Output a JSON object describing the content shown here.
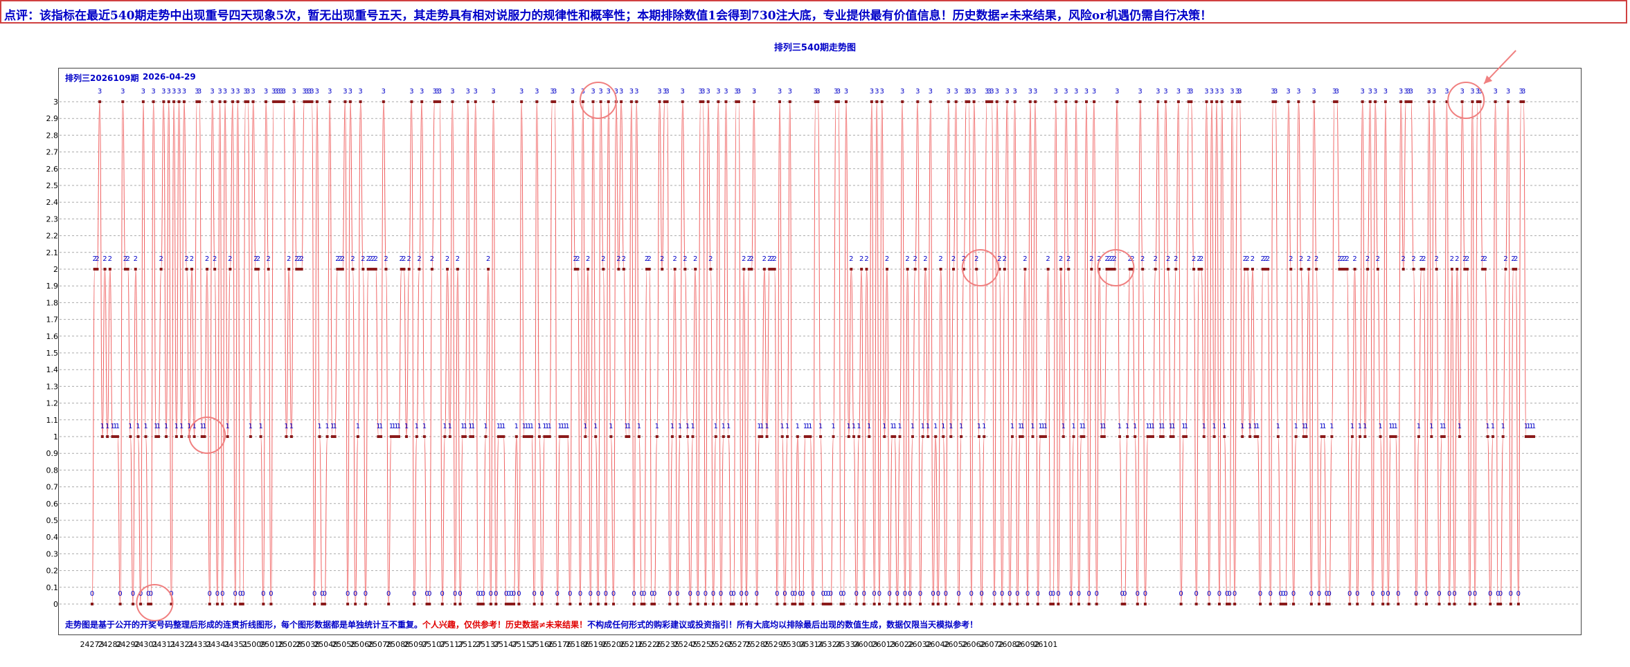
{
  "banner": {
    "text": "点评：该指标在最近540期走势中出现重号四天现象5次，暂无出现重号五天，其走势具有相对说服力的规律性和概率性；本期排除数值1会得到730注大底，专业提供最有价值信息！历史数据≠未来结果，风险or机遇仍需自行决策！"
  },
  "chart_header": {
    "period": "排列三2026109期",
    "date": "2026-04-29"
  },
  "footnote": {
    "part1": "走势图是基于公开的开奖号码整理后形成的连贯折线图形，每个图形数据都是单独统计互不重复。",
    "part2": "个人兴趣，仅供参考！历史数据≠未来结果！",
    "part3": "不构成任何形式的购彩建议或投资指引！所有大底均以排除最后出现的数值生成，数据仅限当天模拟参考！"
  },
  "colors": {
    "line": "#f06060",
    "point": "#8b1a1a",
    "value_label": "#0000c8",
    "circle": "#f08080",
    "grid": "#aaaaaa"
  },
  "chart_data": {
    "type": "line",
    "title": "排列三540期走势图",
    "ylim": [
      0,
      3
    ],
    "yticks": [
      "0",
      "0.1",
      "0.2",
      "0.3",
      "0.4",
      "0.5",
      "0.6",
      "0.7",
      "0.8",
      "0.9",
      "1",
      "1.1",
      "1.2",
      "1.3",
      "1.4",
      "1.5",
      "1.6",
      "1.7",
      "1.8",
      "1.9",
      "2",
      "2.1",
      "2.2",
      "2.3",
      "2.4",
      "2.5",
      "2.6",
      "2.7",
      "2.8",
      "2.9",
      "3"
    ],
    "x_tick_labels": [
      "24273",
      "24282",
      "24292",
      "24301",
      "24311",
      "24321",
      "24331",
      "24341",
      "24351",
      "25009",
      "25018",
      "25028",
      "25038",
      "25048",
      "25058",
      "25068",
      "25078",
      "25088",
      "25097",
      "25107",
      "25117",
      "25127",
      "25137",
      "25147",
      "25157",
      "25166",
      "25176",
      "25186",
      "25196",
      "25206",
      "25216",
      "25226",
      "25235",
      "25245",
      "25255",
      "25265",
      "25275",
      "25285",
      "25295",
      "25304",
      "25314",
      "25324",
      "25334",
      "26003",
      "26013",
      "26022",
      "26032",
      "26042",
      "26052",
      "26062",
      "26072",
      "26082",
      "26092",
      "26101"
    ],
    "grid": true,
    "series": [
      {
        "values": [
          0,
          2,
          2,
          3,
          1,
          2,
          1,
          2,
          1,
          1,
          1,
          0,
          3,
          2,
          2,
          1,
          0,
          2,
          1,
          0,
          3,
          1,
          0,
          0,
          3,
          1,
          1,
          2,
          3,
          1,
          3,
          0,
          3,
          1,
          3,
          1,
          3,
          2,
          1,
          2,
          1,
          3,
          3,
          1,
          1,
          2,
          0,
          3,
          2,
          0,
          3,
          0,
          3,
          1,
          2,
          3,
          0,
          3,
          0,
          0,
          3,
          3,
          1,
          3,
          2,
          2,
          1,
          0,
          3,
          2,
          0,
          3,
          3,
          3,
          3,
          3,
          1,
          2,
          1,
          3,
          2,
          2,
          2,
          3,
          3,
          3,
          3,
          0,
          3,
          1,
          0,
          0,
          1,
          3,
          1,
          1,
          2,
          2,
          2,
          3,
          0,
          3,
          2,
          0,
          1,
          3,
          2,
          0,
          2,
          2,
          2,
          2,
          1,
          1,
          3,
          2,
          0,
          1,
          1,
          1,
          1,
          2,
          2,
          1,
          2,
          3,
          0,
          1,
          2,
          3,
          1,
          0,
          0,
          2,
          3,
          3,
          3,
          0,
          1,
          2,
          1,
          3,
          0,
          2,
          0,
          1,
          1,
          3,
          1,
          1,
          3,
          0,
          0,
          0,
          1,
          2,
          0,
          3,
          0,
          1,
          1,
          1,
          0,
          0,
          0,
          0,
          1,
          0,
          3,
          1,
          1,
          1,
          1,
          0,
          3,
          1,
          0,
          1,
          1,
          1,
          3,
          3,
          0,
          1,
          1,
          1,
          1,
          0,
          3,
          2,
          2,
          0,
          3,
          1,
          2,
          0,
          3,
          1,
          0,
          3,
          2,
          0,
          3,
          1,
          0,
          3,
          2,
          3,
          2,
          1,
          1,
          3,
          0,
          3,
          1,
          0,
          0,
          2,
          2,
          0,
          0,
          1,
          3,
          2,
          3,
          3,
          0,
          1,
          2,
          0,
          1,
          3,
          2,
          1,
          0,
          1,
          2,
          0,
          3,
          3,
          0,
          3,
          2,
          0,
          1,
          3,
          0,
          1,
          3,
          1,
          0,
          0,
          3,
          3,
          0,
          2,
          0,
          2,
          2,
          3,
          0,
          1,
          1,
          2,
          1,
          2,
          2,
          2,
          0,
          3,
          1,
          0,
          1,
          3,
          0,
          0,
          1,
          0,
          0,
          1,
          1,
          1,
          0,
          3,
          3,
          1,
          0,
          0,
          0,
          0,
          1,
          3,
          3,
          0,
          0,
          3,
          1,
          2,
          1,
          0,
          1,
          2,
          0,
          2,
          1,
          3,
          0,
          3,
          0,
          3,
          1,
          2,
          0,
          1,
          1,
          0,
          1,
          3,
          0,
          2,
          0,
          1,
          2,
          3,
          0,
          1,
          2,
          1,
          3,
          0,
          1,
          0,
          2,
          1,
          0,
          3,
          1,
          2,
          3,
          0,
          1,
          2,
          3,
          3,
          0,
          3,
          2,
          1,
          0,
          1,
          3,
          3,
          3,
          0,
          3,
          2,
          0,
          2,
          3,
          0,
          1,
          3,
          0,
          1,
          1,
          2,
          0,
          3,
          1,
          3,
          0,
          1,
          1,
          1,
          2,
          0,
          0,
          3,
          0,
          2,
          1,
          3,
          2,
          0,
          1,
          3,
          0,
          1,
          1,
          3,
          0,
          2,
          3,
          0,
          2,
          1,
          1,
          2,
          2,
          2,
          2,
          3,
          1,
          0,
          0,
          1,
          2,
          2,
          1,
          0,
          3,
          2,
          0,
          1,
          1,
          1,
          2,
          3,
          1,
          1,
          3,
          2,
          1,
          1,
          2,
          3,
          0,
          1,
          1,
          3,
          3,
          2,
          0,
          2,
          2,
          1,
          3,
          0,
          3,
          1,
          3,
          0,
          3,
          1,
          0,
          0,
          3,
          0,
          3,
          3,
          1,
          2,
          2,
          1,
          2,
          1,
          1,
          0,
          2,
          2,
          2,
          0,
          3,
          3,
          1,
          0,
          0,
          0,
          3,
          2,
          0,
          1,
          3,
          2,
          1,
          1,
          2,
          0,
          3,
          2,
          0,
          1,
          1,
          0,
          0,
          1,
          3,
          3,
          2,
          2,
          2,
          2,
          0,
          1,
          2,
          0,
          1,
          3,
          1,
          2,
          3,
          0,
          3,
          2,
          1,
          0,
          3,
          0,
          1,
          1,
          1,
          0,
          3,
          2,
          3,
          3,
          3,
          2,
          0,
          1,
          2,
          2,
          0,
          3,
          1,
          3,
          2,
          0,
          1,
          1,
          3,
          0,
          2,
          0,
          2,
          1,
          3,
          2,
          2,
          0,
          3,
          0,
          3,
          3,
          2,
          2,
          1,
          0,
          1,
          3,
          0,
          0,
          1,
          2,
          3,
          0,
          2,
          2,
          0,
          3,
          3,
          1,
          1,
          1,
          1
        ]
      }
    ],
    "annotations": {
      "circled_runs": [
        [
          23,
          26
        ],
        [
          43,
          47
        ],
        [
          196,
          200
        ],
        [
          346,
          349
        ],
        [
          399,
          402
        ],
        [
          536,
          539
        ]
      ],
      "arrow_target_run": [
        536,
        539
      ]
    }
  }
}
